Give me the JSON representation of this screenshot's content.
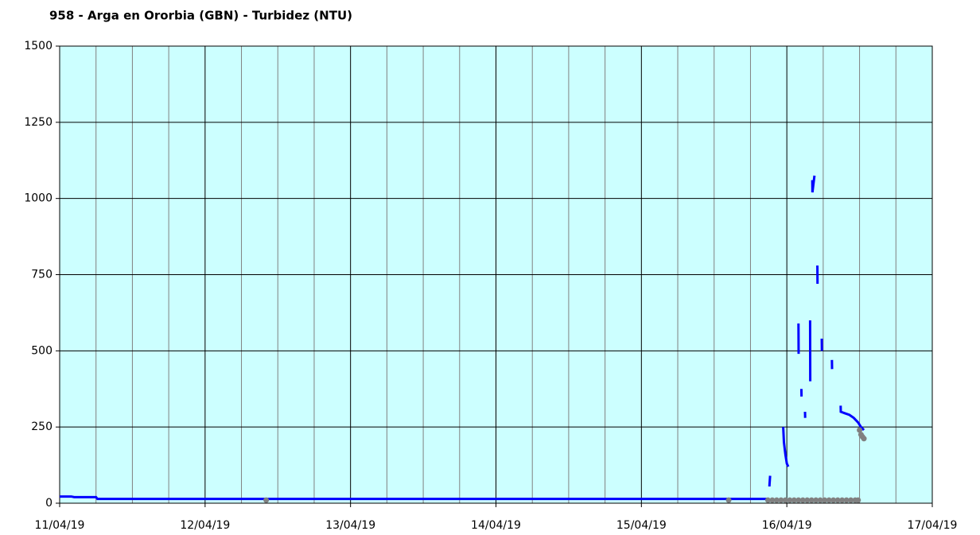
{
  "chart_data": {
    "type": "line",
    "title": "958 - Arga en Ororbia (GBN) - Turbidez (NTU)",
    "xlim": [
      0,
      6
    ],
    "ylim": [
      0,
      1500
    ],
    "yticks": [
      0,
      250,
      500,
      750,
      1000,
      1250,
      1500
    ],
    "xticks": [
      {
        "value": 0,
        "label": "11/04/19"
      },
      {
        "value": 1,
        "label": "12/04/19"
      },
      {
        "value": 2,
        "label": "13/04/19"
      },
      {
        "value": 3,
        "label": "14/04/19"
      },
      {
        "value": 4,
        "label": "15/04/19"
      },
      {
        "value": 5,
        "label": "16/04/19"
      },
      {
        "value": 6,
        "label": "17/04/19"
      }
    ],
    "xminorticks": [
      0.25,
      0.5,
      0.75,
      1.25,
      1.5,
      1.75,
      2.25,
      2.5,
      2.75,
      3.25,
      3.5,
      3.75,
      4.25,
      4.5,
      4.75,
      5.25,
      5.5,
      5.75
    ],
    "grid": true,
    "plot_background": "#ccffff",
    "series": [
      {
        "color": "#0000ff",
        "marker": false,
        "x": [
          0,
          0.08,
          0.1,
          0.25,
          0.26,
          4.87,
          null,
          4.88,
          4.885,
          null,
          4.975,
          4.98,
          4.99,
          5.0,
          5.01,
          null,
          5.08,
          5.081,
          null,
          5.1,
          5.101,
          null,
          5.125,
          5.126,
          null,
          5.16,
          5.161,
          null,
          5.175,
          5.176,
          5.19,
          null,
          5.21,
          5.211,
          null,
          5.24,
          5.241,
          null,
          5.31,
          5.311,
          null,
          5.37,
          5.371,
          5.4,
          5.43,
          5.46,
          5.49,
          5.51,
          5.53
        ],
        "values": [
          22,
          22,
          20,
          20,
          14,
          14,
          null,
          55,
          90,
          null,
          250,
          200,
          160,
          130,
          120,
          null,
          590,
          490,
          null,
          375,
          350,
          null,
          300,
          280,
          null,
          600,
          400,
          null,
          1060,
          1020,
          1075,
          null,
          780,
          720,
          null,
          540,
          500,
          null,
          470,
          440,
          null,
          320,
          300,
          295,
          290,
          280,
          265,
          250,
          240
        ]
      },
      {
        "color": "#808080",
        "marker": true,
        "x": [
          1.42,
          4.6,
          4.87,
          4.9,
          4.93,
          4.96,
          4.99,
          5.02,
          5.05,
          5.08,
          5.11,
          5.14,
          5.17,
          5.2,
          5.23,
          5.26,
          5.29,
          5.32,
          5.35,
          5.38,
          5.41,
          5.44,
          5.47,
          5.49,
          5.5,
          5.51,
          5.52,
          5.53
        ],
        "values": [
          10,
          10,
          10,
          10,
          10,
          10,
          10,
          10,
          10,
          10,
          10,
          10,
          10,
          10,
          10,
          10,
          10,
          10,
          10,
          10,
          10,
          10,
          10,
          10,
          240,
          225,
          218,
          212
        ]
      }
    ]
  }
}
